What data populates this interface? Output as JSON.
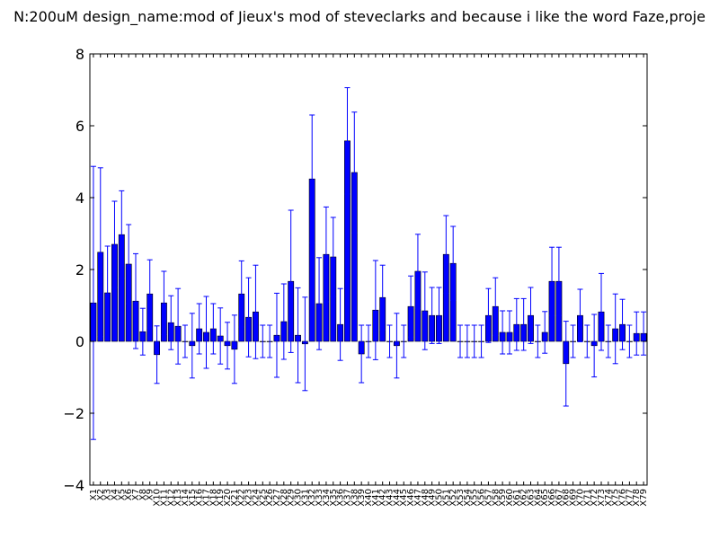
{
  "chart_data": {
    "type": "bar",
    "title": "N:200uM  design_name:mod of Jieux's mod of steveclarks and because i like the word Faze,proje",
    "xlabel": "",
    "ylabel": "",
    "ylim": [
      -4,
      8
    ],
    "yticks": [
      -4,
      -2,
      0,
      2,
      4,
      6,
      8
    ],
    "ytick_labels": [
      "−4",
      "−2",
      "0",
      "2",
      "4",
      "6",
      "8"
    ],
    "grid": false,
    "legend": "none",
    "colors": {
      "bar": "#0000ff",
      "edge": "#000000",
      "errorbar": "#0000ff"
    },
    "categories": [
      "X1",
      "X2",
      "X3",
      "X4",
      "X5",
      "X6",
      "X7",
      "X8",
      "X9",
      "X10",
      "X11",
      "X12",
      "X13",
      "X14",
      "X15",
      "X16",
      "X17",
      "X18",
      "X19",
      "X20",
      "X21",
      "X22",
      "X23",
      "X24",
      "X25",
      "X26",
      "X27",
      "X28",
      "X29",
      "X30",
      "X31",
      "X32",
      "X33",
      "X34",
      "X35",
      "X36",
      "X37",
      "X38",
      "X39",
      "X40",
      "X41",
      "X42",
      "X43",
      "X44",
      "X45",
      "X46",
      "X47",
      "X48",
      "X49",
      "X50",
      "X51",
      "X52",
      "X53",
      "X54",
      "X55",
      "X56",
      "X57",
      "X58",
      "X59",
      "X60",
      "X61",
      "X62",
      "X63",
      "X64",
      "X65",
      "X66",
      "X67",
      "X68",
      "X69",
      "X70",
      "X71",
      "X72",
      "X73",
      "X74",
      "X75",
      "X76",
      "X77",
      "X78",
      "X79"
    ],
    "values": [
      1.07,
      2.48,
      1.35,
      2.7,
      2.97,
      2.15,
      1.12,
      0.27,
      1.32,
      -0.37,
      1.07,
      0.52,
      0.42,
      0.0,
      -0.12,
      0.35,
      0.25,
      0.35,
      0.15,
      -0.12,
      -0.22,
      1.32,
      0.67,
      0.82,
      0.0,
      0.0,
      0.17,
      0.55,
      1.67,
      0.17,
      -0.07,
      4.52,
      1.05,
      2.42,
      2.35,
      0.47,
      5.58,
      4.7,
      -0.35,
      0.0,
      0.87,
      1.22,
      0.0,
      -0.12,
      0.0,
      0.97,
      1.95,
      0.85,
      0.72,
      0.72,
      2.42,
      2.17,
      0.0,
      0.0,
      0.0,
      0.0,
      0.72,
      0.97,
      0.25,
      0.25,
      0.47,
      0.47,
      0.72,
      0.0,
      0.25,
      1.67,
      1.67,
      -0.62,
      0.0,
      0.72,
      0.0,
      -0.12,
      0.82,
      0.0,
      0.35,
      0.47,
      0.0,
      0.22,
      0.22
    ],
    "errors": [
      3.8,
      2.35,
      1.3,
      1.2,
      1.22,
      1.1,
      1.32,
      0.65,
      0.95,
      0.8,
      0.88,
      0.75,
      1.05,
      0.45,
      0.9,
      0.7,
      1.0,
      0.7,
      0.78,
      0.65,
      0.95,
      0.92,
      1.1,
      1.3,
      0.45,
      0.45,
      1.17,
      1.05,
      1.98,
      1.32,
      1.3,
      1.78,
      1.28,
      1.32,
      1.1,
      1.0,
      1.48,
      1.68,
      0.8,
      0.45,
      1.38,
      0.9,
      0.45,
      0.9,
      0.45,
      0.85,
      1.03,
      1.08,
      0.78,
      0.78,
      1.08,
      1.03,
      0.45,
      0.45,
      0.45,
      0.45,
      0.75,
      0.8,
      0.6,
      0.6,
      0.72,
      0.72,
      0.78,
      0.45,
      0.58,
      0.95,
      0.95,
      1.18,
      0.45,
      0.73,
      0.45,
      0.87,
      1.07,
      0.45,
      0.97,
      0.7,
      0.45,
      0.6,
      0.6
    ]
  }
}
